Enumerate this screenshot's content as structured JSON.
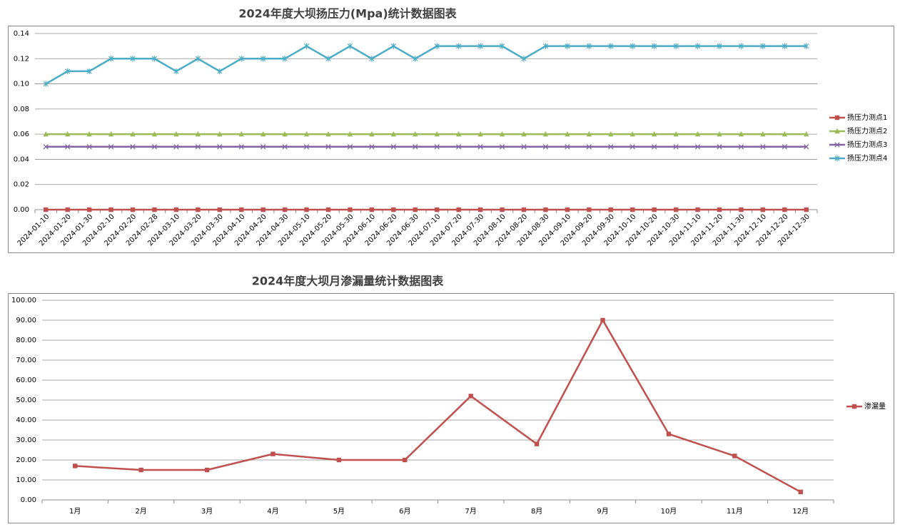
{
  "chart_data": [
    {
      "type": "line",
      "title": "2024年度大坝扬压力(Mpa)统计数据图表",
      "categories": [
        "2024-01-10",
        "2024-01-20",
        "2024-01-30",
        "2024-02-10",
        "2024-02-20",
        "2024-02-28",
        "2024-03-10",
        "2024-03-20",
        "2024-03-30",
        "2024-04-10",
        "2024-04-20",
        "2024-04-30",
        "2024-05-10",
        "2024-05-20",
        "2024-05-30",
        "2024-06-10",
        "2024-06-20",
        "2024-06-30",
        "2024-07-10",
        "2024-07-20",
        "2024-07-30",
        "2024-08-10",
        "2024-08-20",
        "2024-08-30",
        "2024-09-10",
        "2024-09-20",
        "2024-09-30",
        "2024-10-10",
        "2024-10-20",
        "2024-10-30",
        "2024-11-10",
        "2024-11-20",
        "2024-11-30",
        "2024-12-10",
        "2024-12-20",
        "2024-12-30"
      ],
      "series": [
        {
          "name": "扬压力测点1",
          "color": "#c0504d",
          "marker": "square",
          "values": [
            0,
            0,
            0,
            0,
            0,
            0,
            0,
            0,
            0,
            0,
            0,
            0,
            0,
            0,
            0,
            0,
            0,
            0,
            0,
            0,
            0,
            0,
            0,
            0,
            0,
            0,
            0,
            0,
            0,
            0,
            0,
            0,
            0,
            0,
            0,
            0
          ]
        },
        {
          "name": "扬压力测点2",
          "color": "#9bbb59",
          "marker": "triangle",
          "values": [
            0.06,
            0.06,
            0.06,
            0.06,
            0.06,
            0.06,
            0.06,
            0.06,
            0.06,
            0.06,
            0.06,
            0.06,
            0.06,
            0.06,
            0.06,
            0.06,
            0.06,
            0.06,
            0.06,
            0.06,
            0.06,
            0.06,
            0.06,
            0.06,
            0.06,
            0.06,
            0.06,
            0.06,
            0.06,
            0.06,
            0.06,
            0.06,
            0.06,
            0.06,
            0.06,
            0.06
          ]
        },
        {
          "name": "扬压力测点3",
          "color": "#8064a2",
          "marker": "x",
          "values": [
            0.05,
            0.05,
            0.05,
            0.05,
            0.05,
            0.05,
            0.05,
            0.05,
            0.05,
            0.05,
            0.05,
            0.05,
            0.05,
            0.05,
            0.05,
            0.05,
            0.05,
            0.05,
            0.05,
            0.05,
            0.05,
            0.05,
            0.05,
            0.05,
            0.05,
            0.05,
            0.05,
            0.05,
            0.05,
            0.05,
            0.05,
            0.05,
            0.05,
            0.05,
            0.05,
            0.05
          ]
        },
        {
          "name": "扬压力测点4",
          "color": "#4bacc6",
          "marker": "star",
          "values": [
            0.1,
            0.11,
            0.11,
            0.12,
            0.12,
            0.12,
            0.11,
            0.12,
            0.11,
            0.12,
            0.12,
            0.12,
            0.13,
            0.12,
            0.13,
            0.12,
            0.13,
            0.12,
            0.13,
            0.13,
            0.13,
            0.13,
            0.12,
            0.13,
            0.13,
            0.13,
            0.13,
            0.13,
            0.13,
            0.13,
            0.13,
            0.13,
            0.13,
            0.13,
            0.13,
            0.13
          ]
        }
      ],
      "ylim": [
        0,
        0.14
      ],
      "yticks": [
        {
          "value": 0,
          "label": "0.00"
        },
        {
          "value": 0.02,
          "label": "0.02"
        },
        {
          "value": 0.04,
          "label": "0.04"
        },
        {
          "value": 0.06,
          "label": "0.06"
        },
        {
          "value": 0.08,
          "label": "0.08"
        },
        {
          "value": 0.1,
          "label": "0.10"
        },
        {
          "value": 0.12,
          "label": "0.12"
        },
        {
          "value": 0.14,
          "label": "0.14"
        }
      ],
      "grid": true,
      "legend": "right",
      "x_label_rotation": -45
    },
    {
      "type": "line",
      "title": "2024年度大坝月渗漏量统计数据图表",
      "categories": [
        "1月",
        "2月",
        "3月",
        "4月",
        "5月",
        "6月",
        "7月",
        "8月",
        "9月",
        "10月",
        "11月",
        "12月"
      ],
      "series": [
        {
          "name": "渗漏量",
          "color": "#c0504d",
          "marker": "square",
          "values": [
            17,
            15,
            15,
            23,
            20,
            20,
            52,
            28,
            90,
            33,
            22,
            4
          ]
        }
      ],
      "ylim": [
        0,
        100
      ],
      "yticks": [
        {
          "value": 0,
          "label": "0.00"
        },
        {
          "value": 10,
          "label": "10.00"
        },
        {
          "value": 20,
          "label": "20.00"
        },
        {
          "value": 30,
          "label": "30.00"
        },
        {
          "value": 40,
          "label": "40.00"
        },
        {
          "value": 50,
          "label": "50.00"
        },
        {
          "value": 60,
          "label": "60.00"
        },
        {
          "value": 70,
          "label": "70.00"
        },
        {
          "value": 80,
          "label": "80.00"
        },
        {
          "value": 90,
          "label": "90.00"
        },
        {
          "value": 100,
          "label": "100.00"
        }
      ],
      "grid": true,
      "legend": "right",
      "x_label_rotation": 0
    }
  ]
}
